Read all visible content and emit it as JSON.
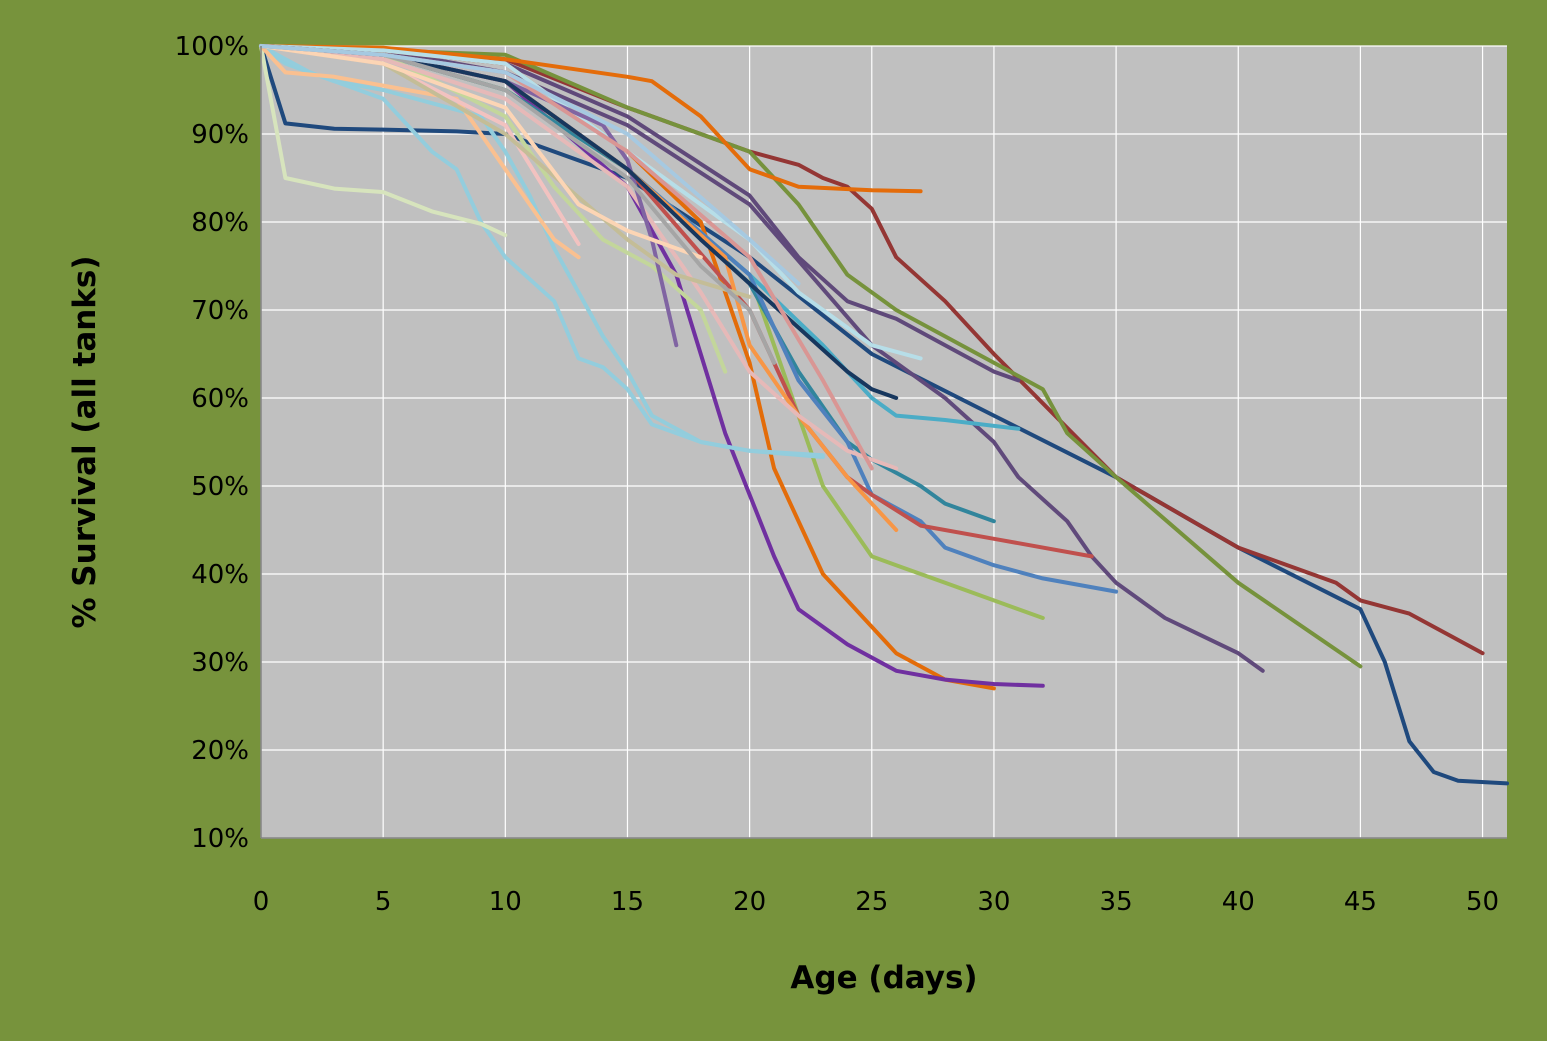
{
  "chart_data": {
    "type": "line",
    "title": "",
    "xlabel": "Age (days)",
    "ylabel": "% Survival (all tanks)",
    "xlim": [
      0,
      51
    ],
    "ylim": [
      10,
      100
    ],
    "x_ticks": [
      0,
      5,
      10,
      15,
      20,
      25,
      30,
      35,
      40,
      45,
      50
    ],
    "x_tick_labels": [
      "0",
      "5",
      "10",
      "15",
      "20",
      "25",
      "30",
      "35",
      "40",
      "45",
      "50"
    ],
    "y_ticks": [
      10,
      20,
      30,
      40,
      50,
      60,
      70,
      80,
      90,
      100
    ],
    "y_tick_labels": [
      "10%",
      "20%",
      "30%",
      "40%",
      "50%",
      "60%",
      "70%",
      "80%",
      "90%",
      "100%"
    ],
    "grid": true,
    "legend": "none",
    "colors": {
      "background": "#77933C",
      "plot_area": "#C0C0C0",
      "gridline": "#FFFFFF"
    },
    "series": [
      {
        "color": "#1F497D",
        "x": [
          0,
          1,
          3,
          5,
          8,
          10,
          15,
          20,
          25,
          30,
          35,
          40,
          45,
          46,
          47,
          48,
          49,
          51
        ],
        "y": [
          100,
          91.2,
          90.6,
          90.5,
          90.3,
          90,
          85,
          76,
          65,
          58,
          51,
          43,
          36,
          30,
          21,
          17.5,
          16.5,
          16.2
        ]
      },
      {
        "color": "#943634",
        "x": [
          0,
          5,
          10,
          15,
          20,
          22,
          23,
          24,
          25,
          26,
          28,
          30,
          35,
          40,
          44,
          45,
          47,
          50
        ],
        "y": [
          100,
          99.5,
          98.5,
          93,
          88,
          86.5,
          85,
          84,
          81.5,
          76,
          71,
          65,
          51,
          43,
          39,
          37,
          35.5,
          31
        ]
      },
      {
        "color": "#76923C",
        "x": [
          0,
          5,
          10,
          15,
          20,
          22,
          24,
          25,
          26,
          28,
          30,
          32,
          33,
          35,
          40,
          45
        ],
        "y": [
          100,
          99.5,
          99,
          93,
          88,
          82,
          74,
          72,
          70,
          67,
          64,
          61,
          56,
          51,
          39,
          29.5
        ]
      },
      {
        "color": "#5F497A",
        "x": [
          0,
          5,
          10,
          15,
          20,
          22,
          24,
          25,
          26,
          28,
          30,
          31
        ],
        "y": [
          100,
          99.5,
          98,
          92,
          83,
          76,
          71,
          70,
          69,
          66,
          63,
          62
        ]
      },
      {
        "color": "#604A7B",
        "x": [
          0,
          5,
          10,
          15,
          20,
          25,
          28,
          30,
          31,
          33,
          34,
          35,
          37,
          40,
          41
        ],
        "y": [
          100,
          99.5,
          97,
          91,
          82,
          66,
          60,
          55,
          51,
          46,
          42,
          39,
          35,
          31,
          29
        ]
      },
      {
        "color": "#E46C0A",
        "x": [
          0,
          5,
          10,
          15,
          16,
          18,
          20,
          22,
          25,
          27
        ],
        "y": [
          100,
          99.8,
          98.5,
          96.5,
          96,
          92,
          86,
          84,
          83.6,
          83.5
        ]
      },
      {
        "color": "#E36C09",
        "x": [
          0,
          5,
          10,
          15,
          18,
          19,
          20,
          21,
          23,
          25,
          26,
          28,
          30
        ],
        "y": [
          100,
          99.5,
          98,
          88,
          80,
          72,
          64,
          52,
          40,
          34,
          31,
          28,
          27
        ]
      },
      {
        "color": "#7030A0",
        "x": [
          0,
          5,
          10,
          15,
          17,
          19,
          21,
          22,
          24,
          26,
          28,
          30,
          32
        ],
        "y": [
          100,
          99,
          96,
          84,
          74,
          56,
          42,
          36,
          32,
          29,
          28,
          27.5,
          27.3
        ]
      },
      {
        "color": "#9BBB59",
        "x": [
          0,
          5,
          10,
          15,
          20,
          22,
          23,
          25,
          26,
          28,
          30,
          32
        ],
        "y": [
          100,
          99,
          95,
          86,
          74,
          58,
          50,
          42,
          41,
          39,
          37,
          35
        ]
      },
      {
        "color": "#31859C",
        "x": [
          0,
          5,
          10,
          15,
          20,
          22,
          24,
          25,
          27,
          28,
          30
        ],
        "y": [
          100,
          99,
          95,
          86,
          73,
          63,
          55,
          53,
          50,
          48,
          46
        ]
      },
      {
        "color": "#4BACC6",
        "x": [
          0,
          5,
          10,
          15,
          20,
          23,
          25,
          26,
          28,
          31
        ],
        "y": [
          100,
          99,
          96,
          86,
          74,
          66,
          60,
          58,
          57.5,
          56.5
        ]
      },
      {
        "color": "#4F81BD",
        "x": [
          0,
          5,
          10,
          15,
          20,
          22,
          24,
          25,
          27,
          28,
          30,
          32,
          35
        ],
        "y": [
          100,
          99,
          96,
          86,
          74,
          62,
          55,
          49,
          46,
          43,
          41,
          39.5,
          38
        ]
      },
      {
        "color": "#C0504D",
        "x": [
          0,
          5,
          10,
          15,
          20,
          22,
          24,
          25,
          27,
          30,
          34
        ],
        "y": [
          100,
          99,
          96,
          86,
          70,
          58,
          51,
          49,
          45.5,
          44,
          42
        ]
      },
      {
        "color": "#F79646",
        "x": [
          0,
          5,
          10,
          15,
          19,
          20,
          22,
          24,
          26
        ],
        "y": [
          100,
          99,
          96,
          86,
          76,
          66,
          58,
          51,
          45
        ]
      },
      {
        "color": "#B7DEE8",
        "x": [
          0,
          5,
          10,
          15,
          20,
          22,
          24,
          25,
          27
        ],
        "y": [
          100,
          99.5,
          98,
          88,
          78,
          72,
          68,
          66,
          64.5
        ]
      },
      {
        "color": "#92CDDC",
        "x": [
          0,
          1,
          3,
          5,
          7,
          9,
          10,
          11,
          12,
          13,
          14,
          15,
          16,
          18,
          20,
          23
        ],
        "y": [
          100,
          98,
          96,
          95,
          93.5,
          92,
          88,
          83,
          77,
          72,
          67,
          63,
          58,
          55,
          54,
          53.3
        ]
      },
      {
        "color": "#93CDDD",
        "x": [
          0,
          2,
          5,
          7,
          8,
          9,
          10,
          12,
          13,
          14,
          15,
          16,
          18,
          20,
          23
        ],
        "y": [
          100,
          97,
          94,
          88,
          86,
          80,
          76,
          71,
          64.5,
          63.5,
          61,
          57,
          55,
          54,
          53.5
        ]
      },
      {
        "color": "#D7E4BD",
        "x": [
          0,
          1,
          3,
          5,
          7,
          9,
          10
        ],
        "y": [
          100,
          85,
          83.8,
          83.4,
          81.2,
          79.8,
          78.5
        ]
      },
      {
        "color": "#C3D69B",
        "x": [
          0,
          5,
          10,
          12,
          14,
          16,
          18,
          19
        ],
        "y": [
          100,
          99,
          92,
          84,
          78,
          75,
          70,
          63
        ]
      },
      {
        "color": "#FAC090",
        "x": [
          0,
          1,
          3,
          5,
          8,
          10,
          11,
          12,
          13
        ],
        "y": [
          100,
          97,
          96.5,
          95.5,
          94,
          86,
          82,
          78,
          76
        ]
      },
      {
        "color": "#E6B9B8",
        "x": [
          0,
          5,
          10,
          15,
          18,
          20,
          22,
          24,
          26
        ],
        "y": [
          100,
          98.5,
          94,
          84,
          72,
          63,
          58,
          54,
          52
        ]
      },
      {
        "color": "#F2C2C0",
        "x": [
          0,
          5,
          10,
          12,
          13
        ],
        "y": [
          100,
          98,
          91,
          82,
          77.5
        ]
      },
      {
        "color": "#8064A2",
        "x": [
          0,
          5,
          10,
          14,
          15,
          16,
          17
        ],
        "y": [
          100,
          99,
          96,
          91,
          87,
          78,
          66
        ]
      },
      {
        "color": "#17375E",
        "x": [
          0,
          5,
          10,
          15,
          18,
          20,
          22,
          24,
          25,
          26
        ],
        "y": [
          100,
          99,
          96,
          86,
          78,
          73,
          68,
          63,
          61,
          60
        ]
      },
      {
        "color": "#C4BD97",
        "x": [
          0,
          5,
          10,
          15,
          17,
          20
        ],
        "y": [
          100,
          98,
          90,
          78,
          74,
          71.5
        ]
      },
      {
        "color": "#FCD5B5",
        "x": [
          0,
          5,
          10,
          13,
          15,
          17,
          18
        ],
        "y": [
          100,
          98,
          93,
          82,
          79,
          77,
          76
        ]
      },
      {
        "color": "#D99694",
        "x": [
          0,
          5,
          10,
          15,
          20,
          23,
          25
        ],
        "y": [
          100,
          99,
          97,
          88,
          76,
          62,
          52
        ]
      },
      {
        "color": "#A5A5A5",
        "x": [
          0,
          5,
          10,
          15,
          18,
          20,
          21
        ],
        "y": [
          100,
          99,
          95,
          85,
          75,
          70,
          64
        ]
      },
      {
        "color": "#A6C9E1",
        "x": [
          0,
          5,
          10,
          15,
          20,
          22
        ],
        "y": [
          100,
          99,
          97,
          90,
          78,
          73
        ]
      }
    ]
  }
}
